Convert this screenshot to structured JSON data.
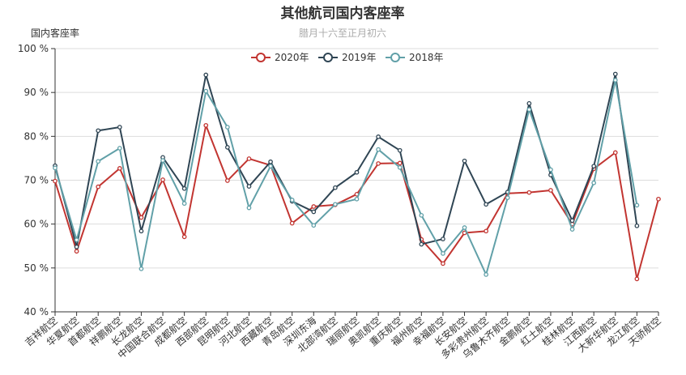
{
  "chart_data": {
    "type": "line",
    "title": "其他航司国内客座率",
    "subtitle": "腊月十六至正月初六",
    "ylabel": "国内客座率",
    "xlabel": "",
    "ylim": [
      40,
      100
    ],
    "yticks": [
      40,
      50,
      60,
      70,
      80,
      90,
      100
    ],
    "ytick_suffix": " %",
    "grid": true,
    "legend_position": "top-center",
    "categories": [
      "吉祥航空",
      "华夏航空",
      "首都航空",
      "祥鹏航空",
      "长龙航空",
      "中国联合航空",
      "成都航空",
      "西部航空",
      "昆明航空",
      "河北航空",
      "西藏航空",
      "青岛航空",
      "深圳东海",
      "北部湾航空",
      "瑞丽航空",
      "奥凯航空",
      "重庆航空",
      "福州航空",
      "幸福航空",
      "长安航空",
      "多彩贵州航空",
      "乌鲁木齐航空",
      "金鹏航空",
      "红土航空",
      "桂林航空",
      "江西航空",
      "大新华航空",
      "龙江航空",
      "天骄航空"
    ],
    "series": [
      {
        "name": "2020年",
        "color": "#c23531",
        "values": [
          69.8,
          53.8,
          68.5,
          72.7,
          61.5,
          70.1,
          57.1,
          82.5,
          69.9,
          74.9,
          73.4,
          60.2,
          64.0,
          64.4,
          66.8,
          73.8,
          73.9,
          56.5,
          51.0,
          58.0,
          58.4,
          67.0,
          67.2,
          67.7,
          60.0,
          72.6,
          76.3,
          47.5,
          65.7
        ]
      },
      {
        "name": "2019年",
        "color": "#2f4554",
        "values": [
          73.3,
          54.8,
          81.3,
          82.1,
          58.4,
          75.2,
          68.1,
          94.0,
          77.5,
          68.6,
          74.2,
          65.2,
          62.8,
          68.3,
          71.8,
          79.9,
          76.8,
          55.4,
          56.6,
          74.4,
          64.5,
          67.3,
          87.5,
          71.2,
          60.8,
          73.2,
          94.2,
          59.6,
          null
        ]
      },
      {
        "name": "2018年",
        "color": "#61a0a8",
        "values": [
          72.8,
          56.4,
          74.3,
          77.3,
          49.8,
          74.5,
          64.7,
          90.3,
          82.1,
          63.7,
          73.2,
          65.5,
          59.7,
          64.5,
          65.7,
          77.0,
          72.9,
          62.0,
          53.3,
          59.2,
          48.5,
          66.0,
          86.1,
          72.4,
          58.8,
          69.4,
          92.8,
          64.3,
          null
        ]
      }
    ]
  }
}
